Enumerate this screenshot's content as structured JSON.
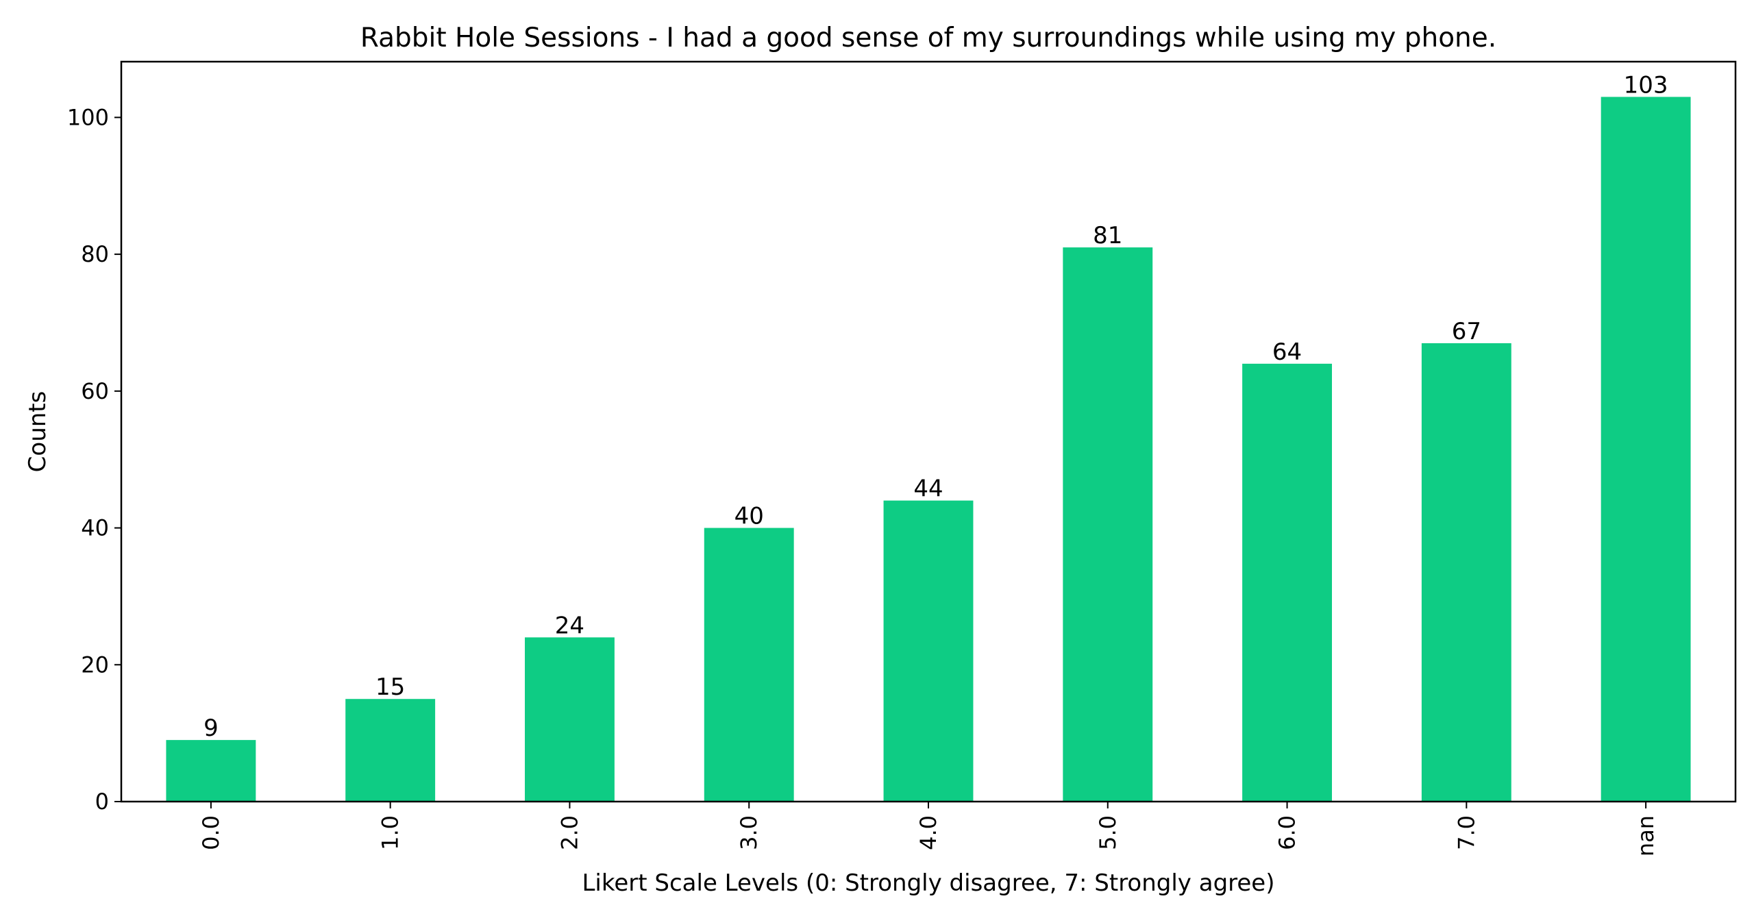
{
  "chart_data": {
    "type": "bar",
    "title": "Rabbit Hole Sessions - I had a good sense of my surroundings while using my phone.",
    "xlabel": "Likert Scale Levels (0: Strongly disagree, 7: Strongly agree)",
    "ylabel": "Counts",
    "categories": [
      "0.0",
      "1.0",
      "2.0",
      "3.0",
      "4.0",
      "5.0",
      "6.0",
      "7.0",
      "nan"
    ],
    "values": [
      9,
      15,
      24,
      40,
      44,
      81,
      64,
      67,
      103
    ],
    "ylim": [
      0,
      108.15
    ],
    "yticks": [
      0,
      20,
      40,
      60,
      80,
      100
    ],
    "bar_color": "#0ecc84",
    "grid": false,
    "legend": "none"
  }
}
